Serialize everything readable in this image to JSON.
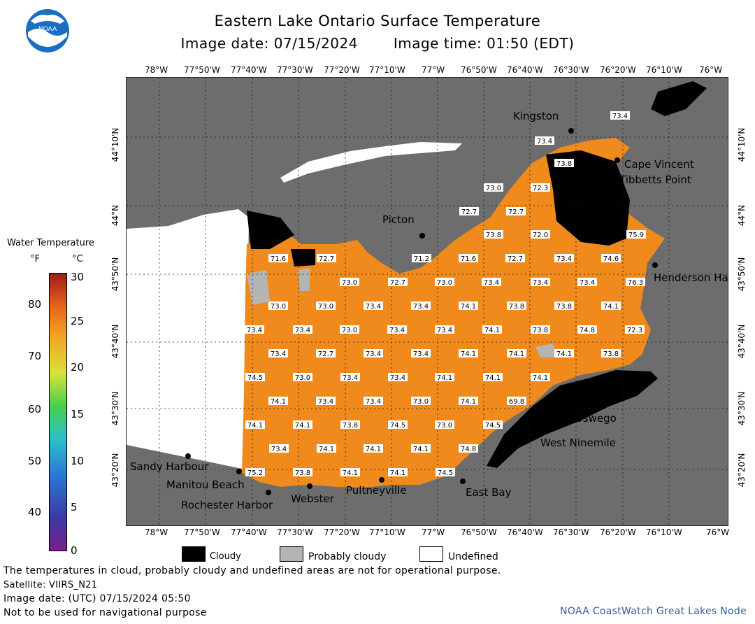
{
  "title": "Eastern Lake Ontario Surface Temperature",
  "image_date": "Image date: 07/15/2024",
  "image_time": "Image time: 01:50 (EDT)",
  "logo_text": "NOAA",
  "colors": {
    "water_warm": "#f08a1c",
    "land": "#6d6d6d",
    "cloudy": "#000000",
    "probably_cloudy": "#b4b4b4",
    "undefined": "#ffffff"
  },
  "top_axis": [
    "78°W",
    "77°50'W",
    "77°40'W",
    "77°30'W",
    "77°20'W",
    "77°10'W",
    "77°W",
    "76°50'W",
    "76°40'W",
    "76°30'W",
    "76°20'W",
    "76°10'W",
    "76°W"
  ],
  "bottom_axis": [
    "78°W",
    "77°50'W",
    "77°40'W",
    "77°30'W",
    "77°20'W",
    "77°10'W",
    "77°W",
    "76°50'W",
    "76°40'W",
    "76°30'W",
    "76°20'W",
    "76°10'W",
    "76°W"
  ],
  "lat_axis": [
    "44°10'N",
    "44°N",
    "43°50'N",
    "43°40'N",
    "43°30'N",
    "43°20'N"
  ],
  "legend": {
    "title": "Water Temperature",
    "unit_f": "°F",
    "unit_c": "°C",
    "f_ticks": [
      "80",
      "70",
      "60",
      "50",
      "40"
    ],
    "c_ticks": [
      "30",
      "25",
      "20",
      "15",
      "10",
      "5",
      "0"
    ]
  },
  "bottom_legend": {
    "cloudy": "Cloudy",
    "probably_cloudy": "Probably cloudy",
    "undefined": "Undefined"
  },
  "places": {
    "kingston": "Kingston",
    "cape_vincent": "Cape Vincent",
    "tibbetts_point": "Tibbetts Point",
    "picton": "Picton",
    "henderson_harbor": "Henderson Harbor",
    "oswego": "Oswego",
    "west_ninemile": "West Ninemile",
    "sandy_harbour": "Sandy Harbour",
    "manitou_beach": "Manitou Beach",
    "rochester_harbor": "Rochester Harbor",
    "webster": "Webster",
    "pultneyville": "Pultneyville",
    "east_bay": "East Bay"
  },
  "temperatures": [
    "73.4",
    "73.4",
    "73.8",
    "73.0",
    "72.3",
    "72.7",
    "72.7",
    "73.8",
    "72.0",
    "75.9",
    "71.6",
    "72.7",
    "71.2",
    "71.6",
    "72.7",
    "73.4",
    "74.6",
    "73.0",
    "72.7",
    "73.0",
    "73.4",
    "73.4",
    "73.4",
    "76.3",
    "73.0",
    "73.0",
    "73.4",
    "73.4",
    "74.1",
    "73.8",
    "73.8",
    "74.1",
    "73.4",
    "73.4",
    "73.0",
    "73.4",
    "73.4",
    "74.1",
    "73.8",
    "74.8",
    "72.3",
    "73.4",
    "72.7",
    "73.4",
    "73.4",
    "74.1",
    "74.1",
    "74.1",
    "73.8",
    "74.5",
    "73.0",
    "73.4",
    "73.4",
    "74.1",
    "74.1",
    "74.1",
    "74.1",
    "73.4",
    "73.4",
    "73.0",
    "74.1",
    "69.8",
    "74.1",
    "74.1",
    "73.8",
    "74.5",
    "73.0",
    "74.5",
    "73.4",
    "74.1",
    "74.1",
    "74.1",
    "74.8",
    "75.2",
    "73.8",
    "74.1",
    "74.1",
    "74.5"
  ],
  "footnotes": {
    "warning": "The temperatures in cloud, probably cloudy and undefined areas are not for operational purpose.",
    "satellite": "Satellite: VIIRS_N21",
    "utc": "Image date: (UTC) 07/15/2024  05:50",
    "nav": "Not to be used for navigational purpose"
  },
  "credit": "NOAA CoastWatch Great Lakes Node"
}
